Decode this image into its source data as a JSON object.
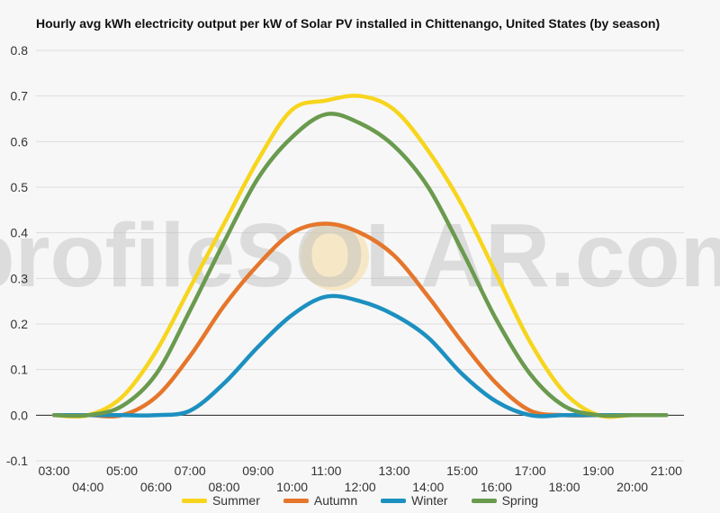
{
  "watermark": "profileSOLAR.com",
  "chart_data": {
    "type": "line",
    "title": "Hourly avg kWh electricity output per kW of Solar PV installed in Chittenango, United States (by season)",
    "xlabel": "",
    "ylabel": "",
    "x": [
      "03:00",
      "04:00",
      "05:00",
      "06:00",
      "07:00",
      "08:00",
      "09:00",
      "10:00",
      "11:00",
      "12:00",
      "13:00",
      "14:00",
      "15:00",
      "16:00",
      "17:00",
      "18:00",
      "19:00",
      "20:00",
      "21:00"
    ],
    "x_tick_labels": [
      "03:00",
      "04:00",
      "05:00",
      "06:00",
      "07:00",
      "08:00",
      "09:00",
      "10:00",
      "11:00",
      "12:00",
      "13:00",
      "14:00",
      "15:00",
      "16:00",
      "17:00",
      "18:00",
      "19:00",
      "20:00",
      "21:00"
    ],
    "ylim": [
      -0.1,
      0.8
    ],
    "y_ticks": [
      "-0.1",
      "0.0",
      "0.1",
      "0.2",
      "0.3",
      "0.4",
      "0.5",
      "0.6",
      "0.7",
      "0.8"
    ],
    "grid": true,
    "legend_position": "bottom",
    "series": [
      {
        "name": "Summer",
        "color": "#f7d51d",
        "values": [
          0.0,
          0.0,
          0.04,
          0.14,
          0.28,
          0.42,
          0.56,
          0.67,
          0.69,
          0.7,
          0.67,
          0.58,
          0.46,
          0.31,
          0.16,
          0.05,
          0.0,
          0.0,
          0.0
        ]
      },
      {
        "name": "Autumn",
        "color": "#e5762b",
        "values": [
          0.0,
          0.0,
          0.0,
          0.04,
          0.13,
          0.24,
          0.33,
          0.4,
          0.42,
          0.4,
          0.35,
          0.26,
          0.16,
          0.07,
          0.01,
          0.0,
          0.0,
          0.0,
          0.0
        ]
      },
      {
        "name": "Winter",
        "color": "#1c90c0",
        "values": [
          0.0,
          0.0,
          0.0,
          0.0,
          0.01,
          0.07,
          0.15,
          0.22,
          0.26,
          0.25,
          0.22,
          0.17,
          0.09,
          0.03,
          0.0,
          0.0,
          0.0,
          0.0,
          0.0
        ]
      },
      {
        "name": "Spring",
        "color": "#6a9a4e",
        "values": [
          0.0,
          0.0,
          0.02,
          0.09,
          0.23,
          0.38,
          0.52,
          0.61,
          0.66,
          0.64,
          0.59,
          0.5,
          0.36,
          0.21,
          0.09,
          0.02,
          0.0,
          0.0,
          0.0
        ]
      }
    ]
  }
}
